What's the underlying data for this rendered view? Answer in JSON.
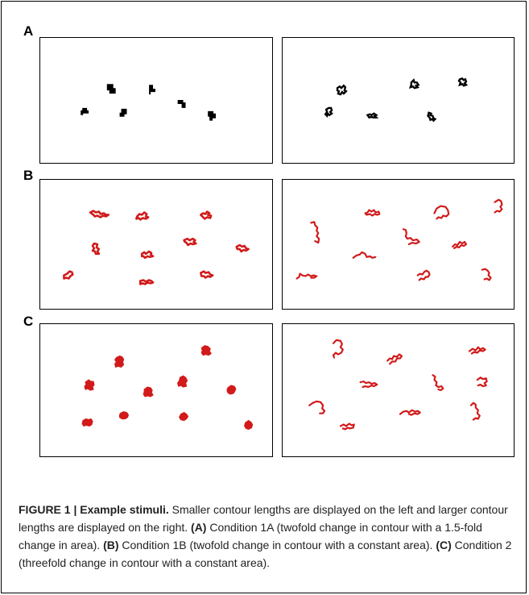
{
  "figure": {
    "rows": [
      {
        "label": "A",
        "left_panel": {
          "color": "#000000",
          "style": "blocky"
        },
        "right_panel": {
          "color": "#000000",
          "style": "blocky"
        }
      },
      {
        "label": "B",
        "left_panel": {
          "color": "#d21a1a",
          "style": "squiggle"
        },
        "right_panel": {
          "color": "#d21a1a",
          "style": "squiggle"
        }
      },
      {
        "label": "C",
        "left_panel": {
          "color": "#d21a1a",
          "style": "blob"
        },
        "right_panel": {
          "color": "#d21a1a",
          "style": "squiggle"
        }
      }
    ]
  },
  "caption": {
    "figure_label": "FIGURE 1 | Example stimuli.",
    "intro": " Smaller contour lengths are displayed on the left and larger contour lengths are displayed on the right. ",
    "a_label": "(A)",
    "a_text": " Condition 1A (twofold change in contour with a 1.5-fold change in area). ",
    "b_label": "(B)",
    "b_text": " Condition 1B (twofold change in contour with a constant area). ",
    "c_label": "(C)",
    "c_text": " Condition 2 (threefold change in contour with a constant area)."
  }
}
